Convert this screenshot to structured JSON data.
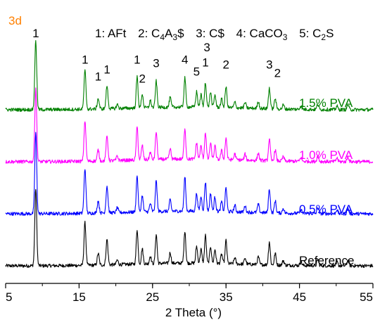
{
  "chart_data": {
    "type": "line",
    "panel_label": "3d",
    "panel_label_color": "#ff8000",
    "legend_key": [
      {
        "text": "1: AFt"
      },
      {
        "text": "2: C",
        "sub1": "4",
        "mid": "A",
        "sub2": "3",
        "tail": "$"
      },
      {
        "text": "3: C$"
      },
      {
        "text": "4: CaCO",
        "sub1": "3"
      },
      {
        "text": "5: C",
        "sub1": "2",
        "tail": "S"
      }
    ],
    "xlabel": "2 Theta (°)",
    "xlim": [
      5,
      55
    ],
    "xticks": [
      5,
      15,
      25,
      35,
      45,
      55
    ],
    "grid": false,
    "peaks": [
      {
        "x": 9.1,
        "h": 1.0,
        "w": 0.13
      },
      {
        "x": 15.8,
        "h": 0.55,
        "w": 0.13
      },
      {
        "x": 17.6,
        "h": 0.15,
        "w": 0.13
      },
      {
        "x": 18.8,
        "h": 0.33,
        "w": 0.13
      },
      {
        "x": 20.2,
        "h": 0.06,
        "w": 0.12
      },
      {
        "x": 22.9,
        "h": 0.45,
        "w": 0.12
      },
      {
        "x": 23.6,
        "h": 0.2,
        "w": 0.12
      },
      {
        "x": 24.7,
        "h": 0.1,
        "w": 0.12
      },
      {
        "x": 25.5,
        "h": 0.38,
        "w": 0.12
      },
      {
        "x": 27.4,
        "h": 0.14,
        "w": 0.12
      },
      {
        "x": 29.4,
        "h": 0.42,
        "w": 0.12
      },
      {
        "x": 31.0,
        "h": 0.22,
        "w": 0.12
      },
      {
        "x": 31.6,
        "h": 0.18,
        "w": 0.12
      },
      {
        "x": 32.2,
        "h": 0.36,
        "w": 0.12
      },
      {
        "x": 32.9,
        "h": 0.22,
        "w": 0.12
      },
      {
        "x": 33.5,
        "h": 0.18,
        "w": 0.12
      },
      {
        "x": 34.4,
        "h": 0.12,
        "w": 0.12
      },
      {
        "x": 35.0,
        "h": 0.3,
        "w": 0.12
      },
      {
        "x": 36.2,
        "h": 0.08,
        "w": 0.12
      },
      {
        "x": 37.6,
        "h": 0.08,
        "w": 0.12
      },
      {
        "x": 39.4,
        "h": 0.1,
        "w": 0.12
      },
      {
        "x": 40.9,
        "h": 0.3,
        "w": 0.12
      },
      {
        "x": 41.7,
        "h": 0.15,
        "w": 0.12
      },
      {
        "x": 42.8,
        "h": 0.06,
        "w": 0.12
      },
      {
        "x": 45.2,
        "h": 0.05,
        "w": 0.12
      },
      {
        "x": 47.5,
        "h": 0.08,
        "w": 0.12
      },
      {
        "x": 50.1,
        "h": 0.05,
        "w": 0.12
      },
      {
        "x": 51.6,
        "h": 0.07,
        "w": 0.12
      }
    ],
    "series": [
      {
        "name": "Reference",
        "color": "#000000",
        "offset": 0,
        "scale": 1.0
      },
      {
        "name": "0.5% PVA",
        "color": "#0000ff",
        "offset": 1,
        "scale": 1.05
      },
      {
        "name": "1.0% PVA",
        "color": "#ff00ff",
        "offset": 2,
        "scale": 0.95
      },
      {
        "name": "1.5% PVA",
        "color": "#008000",
        "offset": 3,
        "scale": 0.9
      }
    ],
    "annotations": [
      {
        "text": "1",
        "x": 9.1,
        "level": 1.0
      },
      {
        "text": "1",
        "x": 15.8,
        "level": 0.62
      },
      {
        "text": "1",
        "x": 17.6,
        "level": 0.38
      },
      {
        "text": "1",
        "x": 18.8,
        "level": 0.48
      },
      {
        "text": "1",
        "x": 22.9,
        "level": 0.62
      },
      {
        "text": "2",
        "x": 23.6,
        "level": 0.35
      },
      {
        "text": "3",
        "x": 25.5,
        "level": 0.57
      },
      {
        "text": "4",
        "x": 29.4,
        "level": 0.62
      },
      {
        "text": "5",
        "x": 31.0,
        "level": 0.45
      },
      {
        "text": "1",
        "x": 32.2,
        "level": 0.58
      },
      {
        "text": "3",
        "x": 32.4,
        "level": 0.8
      },
      {
        "text": "2",
        "x": 35.0,
        "level": 0.55
      },
      {
        "text": "3",
        "x": 40.9,
        "level": 0.55
      },
      {
        "text": "2",
        "x": 42.0,
        "level": 0.43
      }
    ]
  }
}
